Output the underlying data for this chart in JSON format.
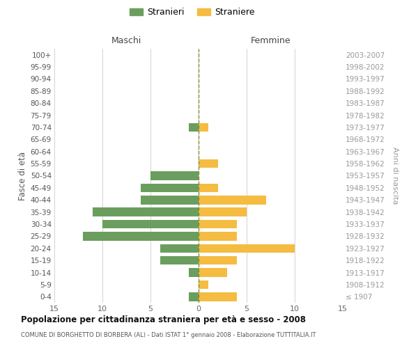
{
  "age_groups": [
    "100+",
    "95-99",
    "90-94",
    "85-89",
    "80-84",
    "75-79",
    "70-74",
    "65-69",
    "60-64",
    "55-59",
    "50-54",
    "45-49",
    "40-44",
    "35-39",
    "30-34",
    "25-29",
    "20-24",
    "15-19",
    "10-14",
    "5-9",
    "0-4"
  ],
  "birth_years": [
    "≤ 1907",
    "1908-1912",
    "1913-1917",
    "1918-1922",
    "1923-1927",
    "1928-1932",
    "1933-1937",
    "1938-1942",
    "1943-1947",
    "1948-1952",
    "1953-1957",
    "1958-1962",
    "1963-1967",
    "1968-1972",
    "1973-1977",
    "1978-1982",
    "1983-1987",
    "1988-1992",
    "1993-1997",
    "1998-2002",
    "2003-2007"
  ],
  "males": [
    0,
    0,
    0,
    0,
    0,
    0,
    1,
    0,
    0,
    0,
    5,
    6,
    6,
    11,
    10,
    12,
    4,
    4,
    1,
    0,
    1
  ],
  "females": [
    0,
    0,
    0,
    0,
    0,
    0,
    1,
    0,
    0,
    2,
    0,
    2,
    7,
    5,
    4,
    4,
    10,
    4,
    3,
    1,
    4
  ],
  "male_color": "#6b9e5e",
  "female_color": "#f5bc42",
  "male_label": "Stranieri",
  "female_label": "Straniere",
  "title": "Popolazione per cittadinanza straniera per età e sesso - 2008",
  "subtitle": "COMUNE DI BORGHETTO DI BORBERA (AL) - Dati ISTAT 1° gennaio 2008 - Elaborazione TUTTITALIA.IT",
  "ylabel_left": "Fasce di età",
  "ylabel_right": "Anni di nascita",
  "xlabel_left": "Maschi",
  "xlabel_right": "Femmine",
  "xlim": 15,
  "background_color": "#ffffff",
  "grid_color": "#cccccc",
  "bar_height": 0.72
}
